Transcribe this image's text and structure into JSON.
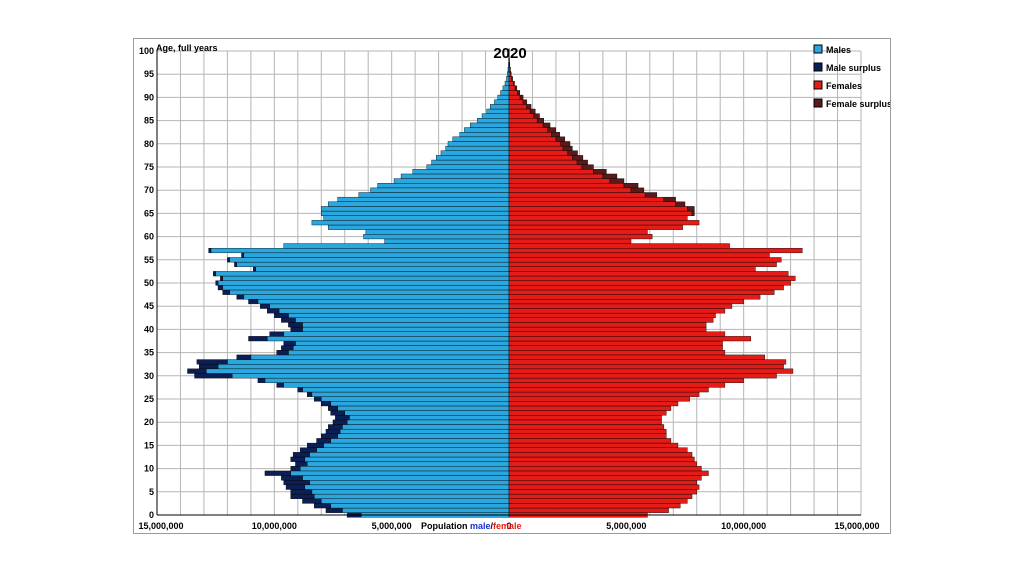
{
  "chart_data": {
    "type": "bar",
    "title": "2020",
    "ylabel": "Age, full years",
    "xlabel_prefix": "Population ",
    "xlabel_male": "male",
    "xlabel_sep": "/",
    "xlabel_female": "female",
    "xlim": [
      -15000000,
      15000000
    ],
    "ylim": [
      0,
      100
    ],
    "grid": true,
    "legend_position": "top-right",
    "colors": {
      "males": "#2aa7df",
      "male_surplus": "#0c1f55",
      "females": "#e41b17",
      "female_surplus": "#5a1a1a"
    },
    "x_tick_labels": [
      "15,000,000",
      "10,000,000",
      "5,000,000",
      "0",
      "5,000,000",
      "10,000,000",
      "15,000,000"
    ],
    "y_tick_labels": [
      "0",
      "5",
      "10",
      "15",
      "20",
      "25",
      "30",
      "35",
      "40",
      "45",
      "50",
      "55",
      "60",
      "65",
      "70",
      "75",
      "80",
      "85",
      "90",
      "95",
      "100"
    ],
    "legend": [
      "Males",
      "Male surplus",
      "Females",
      "Female surplus"
    ],
    "ages": [
      0,
      1,
      2,
      3,
      4,
      5,
      6,
      7,
      8,
      9,
      10,
      11,
      12,
      13,
      14,
      15,
      16,
      17,
      18,
      19,
      20,
      21,
      22,
      23,
      24,
      25,
      26,
      27,
      28,
      29,
      30,
      31,
      32,
      33,
      34,
      35,
      36,
      37,
      38,
      39,
      40,
      41,
      42,
      43,
      44,
      45,
      46,
      47,
      48,
      49,
      50,
      51,
      52,
      53,
      54,
      55,
      56,
      57,
      58,
      59,
      60,
      61,
      62,
      63,
      64,
      65,
      66,
      67,
      68,
      69,
      70,
      71,
      72,
      73,
      74,
      75,
      76,
      77,
      78,
      79,
      80,
      81,
      82,
      83,
      84,
      85,
      86,
      87,
      88,
      89,
      90,
      91,
      92,
      93,
      94,
      95,
      96,
      97,
      98,
      99,
      100
    ],
    "series": [
      {
        "name": "Males",
        "values": [
          6300000,
          7100000,
          7600000,
          8000000,
          8300000,
          8400000,
          8700000,
          8500000,
          8800000,
          9300000,
          8900000,
          8600000,
          8700000,
          8500000,
          8200000,
          7900000,
          7600000,
          7300000,
          7200000,
          7100000,
          6900000,
          6800000,
          7000000,
          7300000,
          7600000,
          8000000,
          8400000,
          8800000,
          9600000,
          10400000,
          11800000,
          12900000,
          12400000,
          12000000,
          11000000,
          9400000,
          9200000,
          9100000,
          10300000,
          9600000,
          8800000,
          8800000,
          9100000,
          9400000,
          9800000,
          10200000,
          10700000,
          11300000,
          11900000,
          12200000,
          12400000,
          12200000,
          12500000,
          10800000,
          11600000,
          11900000,
          11300000,
          12700000,
          9600000,
          5300000,
          6200000,
          6100000,
          7700000,
          8400000,
          7900000,
          8000000,
          8000000,
          7700000,
          7300000,
          6400000,
          5900000,
          5600000,
          4900000,
          4600000,
          4100000,
          3500000,
          3300000,
          3100000,
          2900000,
          2700000,
          2600000,
          2400000,
          2100000,
          1900000,
          1650000,
          1350000,
          1150000,
          950000,
          800000,
          620000,
          480000,
          360000,
          260000,
          170000,
          110000,
          70000,
          45000,
          25000,
          15000,
          8000,
          4000
        ],
        "surplus": [
          600000,
          700000,
          700000,
          800000,
          1000000,
          900000,
          800000,
          1100000,
          900000,
          1100000,
          400000,
          500000,
          600000,
          700000,
          700000,
          700000,
          600000,
          700000,
          600000,
          600000,
          600000,
          600000,
          600000,
          400000,
          400000,
          300000,
          200000,
          200000,
          300000,
          300000,
          1600000,
          800000,
          800000,
          1300000,
          600000,
          500000,
          500000,
          500000,
          800000,
          600000,
          500000,
          600000,
          600000,
          600000,
          500000,
          400000,
          400000,
          300000,
          300000,
          200000,
          100000,
          100000,
          100000,
          100000,
          100000,
          100000,
          100000,
          100000,
          0,
          0,
          0,
          0,
          0,
          0,
          0,
          0,
          0,
          0,
          0,
          0,
          0,
          0,
          0,
          0,
          0,
          0,
          0,
          0,
          0,
          0,
          0,
          0,
          0,
          0,
          0,
          0,
          0,
          0,
          0,
          0,
          0,
          0,
          0,
          0,
          0,
          0,
          0,
          0,
          0,
          0,
          0
        ]
      },
      {
        "name": "Females",
        "values": [
          5900000,
          6800000,
          7300000,
          7600000,
          7800000,
          8000000,
          8100000,
          8000000,
          8200000,
          8500000,
          8200000,
          8000000,
          7900000,
          7800000,
          7600000,
          7200000,
          6900000,
          6700000,
          6700000,
          6600000,
          6500000,
          6500000,
          6700000,
          6900000,
          7200000,
          7700000,
          8100000,
          8500000,
          9200000,
          10000000,
          11400000,
          12100000,
          11700000,
          11800000,
          10900000,
          9200000,
          9100000,
          9100000,
          10300000,
          9200000,
          8400000,
          8400000,
          8700000,
          8800000,
          9200000,
          9500000,
          10000000,
          10700000,
          11300000,
          11700000,
          12000000,
          12200000,
          11900000,
          10500000,
          11400000,
          11600000,
          11100000,
          12500000,
          9400000,
          5200000,
          6100000,
          5900000,
          7400000,
          8100000,
          7600000,
          7800000,
          7600000,
          7100000,
          6600000,
          5800000,
          5200000,
          4900000,
          4300000,
          4000000,
          3600000,
          3100000,
          2900000,
          2700000,
          2500000,
          2300000,
          2200000,
          2000000,
          1800000,
          1650000,
          1450000,
          1200000,
          1050000,
          900000,
          750000,
          600000,
          470000,
          360000,
          260000,
          180000,
          120000,
          75000,
          48000,
          28000,
          16000,
          9000,
          5000
        ],
        "surplus": [
          0,
          0,
          0,
          0,
          0,
          0,
          0,
          0,
          0,
          0,
          0,
          0,
          0,
          0,
          0,
          0,
          0,
          0,
          0,
          0,
          0,
          0,
          0,
          0,
          0,
          0,
          0,
          0,
          0,
          0,
          0,
          0,
          0,
          0,
          0,
          0,
          0,
          0,
          0,
          0,
          0,
          0,
          0,
          0,
          0,
          0,
          0,
          0,
          0,
          0,
          0,
          0,
          0,
          0,
          0,
          0,
          0,
          0,
          0,
          0,
          0,
          0,
          0,
          0,
          0,
          100000,
          300000,
          400000,
          500000,
          500000,
          550000,
          600000,
          600000,
          600000,
          550000,
          500000,
          450000,
          450000,
          420000,
          400000,
          400000,
          380000,
          360000,
          340000,
          300000,
          280000,
          250000,
          220000,
          190000,
          160000,
          130000,
          100000,
          75000,
          55000,
          35000,
          22000,
          14000,
          8000,
          5000,
          3000,
          2000
        ]
      }
    ]
  }
}
